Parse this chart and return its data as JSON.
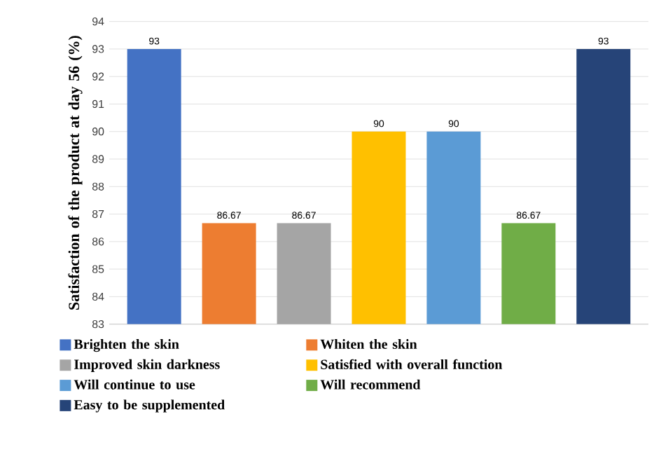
{
  "chart_data": {
    "type": "bar",
    "ylabel": "Satisfaction of the product at day 56 (%)",
    "categories": [
      null,
      null,
      null,
      null,
      null,
      null,
      null
    ],
    "series": [
      {
        "name": "Brighten the skin",
        "color": "#4472c4",
        "values": [
          93,
          null,
          null,
          null,
          null,
          null,
          null
        ]
      },
      {
        "name": "Whiten the skin",
        "color": "#ed7d31",
        "values": [
          null,
          86.67,
          null,
          null,
          null,
          null,
          null
        ]
      },
      {
        "name": "Improved skin darkness",
        "color": "#a5a5a5",
        "values": [
          null,
          null,
          86.67,
          null,
          null,
          null,
          null
        ]
      },
      {
        "name": "Satisfied with overall function",
        "color": "#ffc000",
        "values": [
          null,
          null,
          null,
          90,
          null,
          null,
          null
        ]
      },
      {
        "name": "Will continue to use",
        "color": "#5b9bd5",
        "values": [
          null,
          null,
          null,
          null,
          90,
          null,
          null
        ]
      },
      {
        "name": "Will recommend",
        "color": "#70ad47",
        "values": [
          null,
          null,
          null,
          null,
          null,
          86.67,
          null
        ]
      },
      {
        "name": "Easy to be supplemented",
        "color": "#264478",
        "values": [
          null,
          null,
          null,
          null,
          null,
          null,
          93
        ]
      }
    ],
    "ylim": [
      83,
      94
    ],
    "yticks": [
      83,
      84,
      85,
      86,
      87,
      88,
      89,
      90,
      91,
      92,
      93,
      94
    ],
    "grid": "y",
    "legend": "bottom",
    "data_labels": true
  }
}
